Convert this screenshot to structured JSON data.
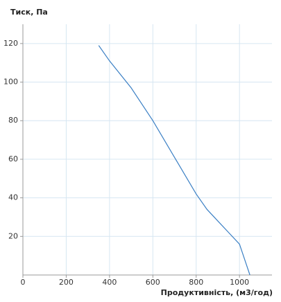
{
  "chart_data": {
    "type": "line",
    "title": "Тиск, Па",
    "x_label": "Продуктивність, (м3/год)",
    "x": [
      350,
      400,
      500,
      600,
      700,
      800,
      850,
      900,
      950,
      1000,
      1048
    ],
    "series": [
      {
        "color": "#3a7fc4",
        "values": [
          119,
          111,
          97,
          80,
          61,
          42,
          34,
          28,
          22,
          16,
          0
        ]
      }
    ],
    "xlim": [
      0,
      1150
    ],
    "xticks": [
      0,
      200,
      400,
      600,
      800,
      1000
    ],
    "ylim": [
      0,
      130
    ],
    "yticks": [
      20,
      40,
      60,
      80,
      100,
      120
    ],
    "grid": true
  }
}
